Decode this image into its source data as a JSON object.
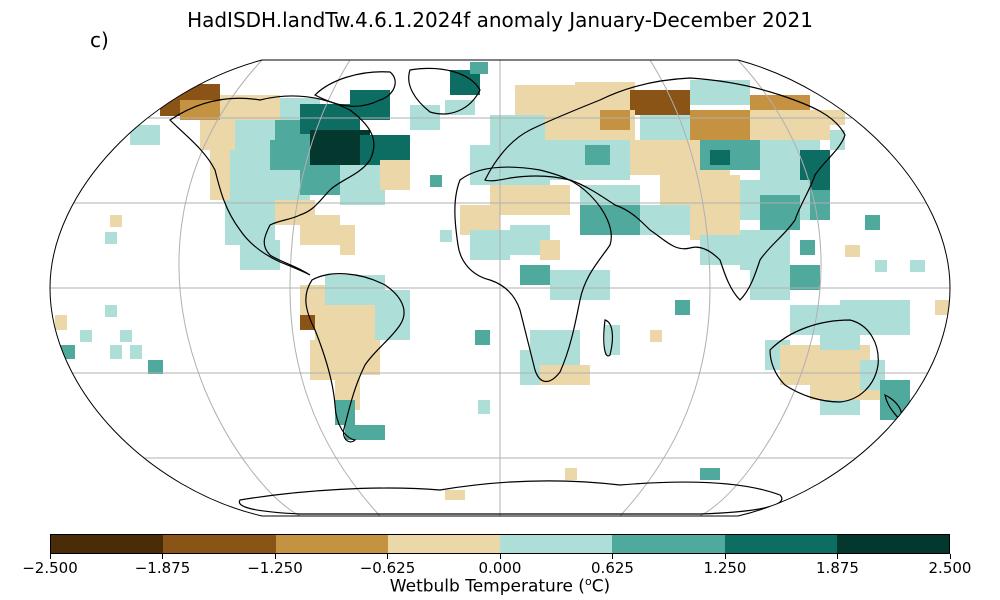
{
  "title": "HadISDH.landTw.4.6.1.2024f anomaly January-December 2021",
  "panel_label": "c)",
  "colorbar": {
    "label": "Wetbulb Temperature (°C)",
    "label_prefix": "Wetbulb Temperature (",
    "label_unit_super": "o",
    "label_unit": "C)",
    "ticks": [
      "−2.500",
      "−1.875",
      "−1.250",
      "−0.625",
      "0.000",
      "0.625",
      "1.250",
      "1.875",
      "2.500"
    ],
    "colors": [
      "#4a2c08",
      "#8b5417",
      "#c59242",
      "#ecd7a9",
      "#addfd8",
      "#4fa99d",
      "#0d6d63",
      "#04382f"
    ]
  },
  "map_colors": {
    "outline": "#000000",
    "grid": "#b0b0b0",
    "coast": "#000000"
  }
}
